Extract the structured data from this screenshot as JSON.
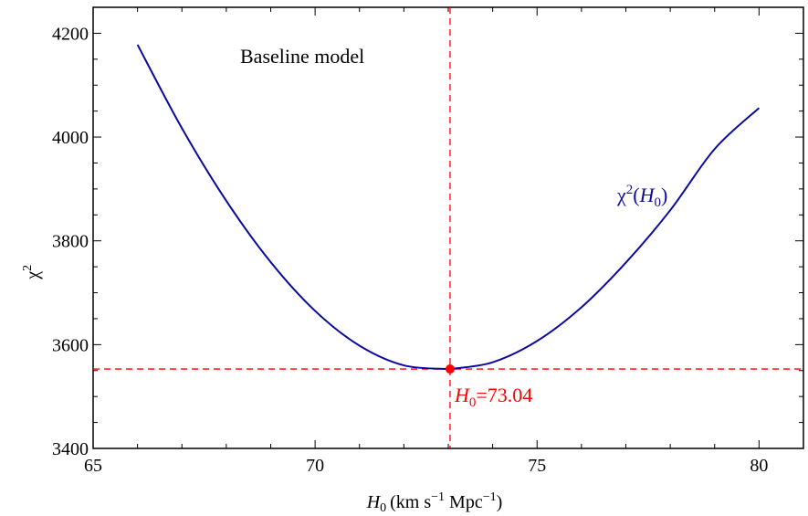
{
  "chart_data": {
    "type": "line",
    "title": "",
    "annotation_text": "Baseline model",
    "xlabel": {
      "base": "H",
      "sub": "0",
      "units": "(km s",
      "exp1": "−1",
      "mid": " Mpc",
      "exp2": "−1",
      "close": ")"
    },
    "ylabel": {
      "base": "χ",
      "sup": "2"
    },
    "xlim": [
      65,
      81
    ],
    "ylim": [
      3400,
      4250
    ],
    "x_ticks": [
      "65",
      "70",
      "75",
      "80"
    ],
    "y_ticks": [
      "3400",
      "3600",
      "3800",
      "4000",
      "4200"
    ],
    "series": [
      {
        "name": "χ²(H₀)",
        "label": {
          "base": "χ",
          "sup": "2",
          "open": "(",
          "var": "H",
          "sub": "0",
          "close": ")"
        },
        "color": "#0a0aa0",
        "x": [
          66,
          67,
          68,
          69,
          70,
          71,
          72,
          73,
          73.04,
          74,
          75,
          76,
          77,
          78,
          79,
          80
        ],
        "y": [
          4178,
          4017,
          3877,
          3759,
          3665,
          3598,
          3560,
          3553,
          3553,
          3566,
          3607,
          3672,
          3758,
          3859,
          3977,
          4056
        ]
      }
    ],
    "best_fit": {
      "x": 73.04,
      "y": 3553,
      "label_var": "H",
      "label_sub": "0",
      "label_value": "=73.04",
      "color": "#ff0000"
    },
    "grid": false
  }
}
